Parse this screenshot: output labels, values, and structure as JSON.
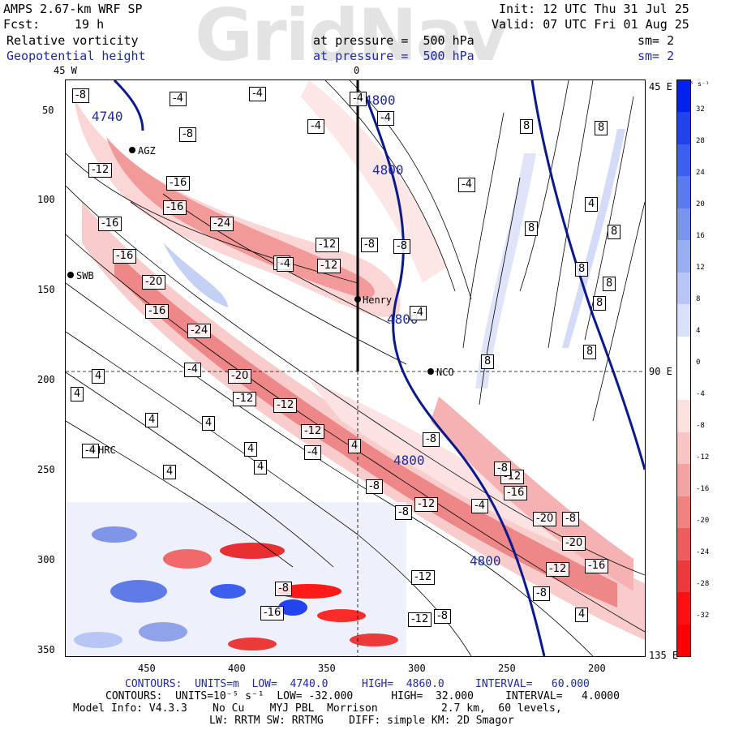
{
  "header": {
    "model": "AMPS 2.67-km WRF SP",
    "fcst_label": "Fcst:",
    "fcst_value": "19 h",
    "init": "Init: 12 UTC Thu 31 Jul 25",
    "valid": "Valid: 07 UTC Fri 01 Aug 25",
    "field1": "Relative vorticity",
    "field1_level": "at pressure =  500 hPa",
    "field1_sm": "sm= 2",
    "field2": "Geopotential height",
    "field2_level": "at pressure =  500 hPa",
    "field2_sm": "sm= 2",
    "watermark": "GridNav"
  },
  "axes": {
    "x_ticks": [
      "450",
      "400",
      "350",
      "300",
      "250",
      "200"
    ],
    "y_ticks": [
      "50",
      "100",
      "150",
      "200",
      "250",
      "300",
      "350"
    ],
    "lon_top_left": "45 W",
    "lon_top_mid": "0",
    "lon_right_top": "45 E",
    "lon_right_mid": "90 E",
    "lon_right_bottom": "135 E"
  },
  "stations": [
    {
      "name": "AGZ"
    },
    {
      "name": "SWB"
    },
    {
      "name": "Henry"
    },
    {
      "name": "NCO"
    },
    {
      "name": "HRC"
    }
  ],
  "height_labels": [
    "4740",
    "4800",
    "4800",
    "4800",
    "4800",
    "4800"
  ],
  "vort_labels": [
    "-8",
    "-4",
    "-4",
    "-4",
    "-4",
    "-8",
    "-12",
    "-16",
    "-16",
    "-24",
    "-16",
    "-12",
    "-8",
    "-4",
    "-16",
    "-4",
    "-12",
    "-8",
    "-20",
    "-16",
    "-24",
    "-4",
    "-20",
    "-12",
    "-12",
    "-12",
    "-8",
    "-4",
    "-12",
    "-8",
    "-8",
    "-12",
    "-16",
    "-20",
    "-8",
    "-20",
    "-12",
    "-16",
    "-12",
    "-4",
    "-8",
    "-16",
    "-12",
    "-8",
    "-4",
    "-4",
    "-4",
    "-8",
    "-4",
    "-8",
    "4",
    "4",
    "4",
    "4",
    "4",
    "4",
    "4",
    "4",
    "4",
    "8",
    "8",
    "8",
    "8",
    "8",
    "8",
    "8",
    "8",
    "8",
    "4",
    "4"
  ],
  "colorbar": {
    "unit": "10⁻⁵ s⁻¹",
    "labels": [
      "32",
      "28",
      "24",
      "20",
      "16",
      "12",
      "8",
      "4",
      "0",
      "-4",
      "-8",
      "-12",
      "-16",
      "-20",
      "-24",
      "-28",
      "-32"
    ],
    "colors": [
      "#0022ee",
      "#1f44ee",
      "#3d5fee",
      "#5a7aee",
      "#7994ee",
      "#98aef2",
      "#b8c6f6",
      "#d8e0fa",
      "#ffffff",
      "#ffffff",
      "#fde0e0",
      "#f9c4c4",
      "#f4a3a3",
      "#f08282",
      "#ec5e5e",
      "#ea3a3a",
      "#ff1010",
      "#ff0000"
    ]
  },
  "footer": {
    "line1_a": "CONTOURS:  UNITS=m  LOW=  4740.0",
    "line1_b": "HIGH=  4860.0",
    "line1_c": "INTERVAL=   60.000",
    "line2": "CONTOURS:  UNITS=10⁻⁵ s⁻¹  LOW= -32.000      HIGH=  32.000     INTERVAL=   4.0000",
    "line3": "Model Info: V4.3.3    No Cu    MYJ PBL  Morrison          2.7 km,  60 levels,",
    "line4": "LW: RRTM SW: RRTMG    DIFF: simple KM: 2D Smagor"
  },
  "colors": {
    "height_contour": "#0a1a8c",
    "header_blue": "#1f2aa0"
  }
}
